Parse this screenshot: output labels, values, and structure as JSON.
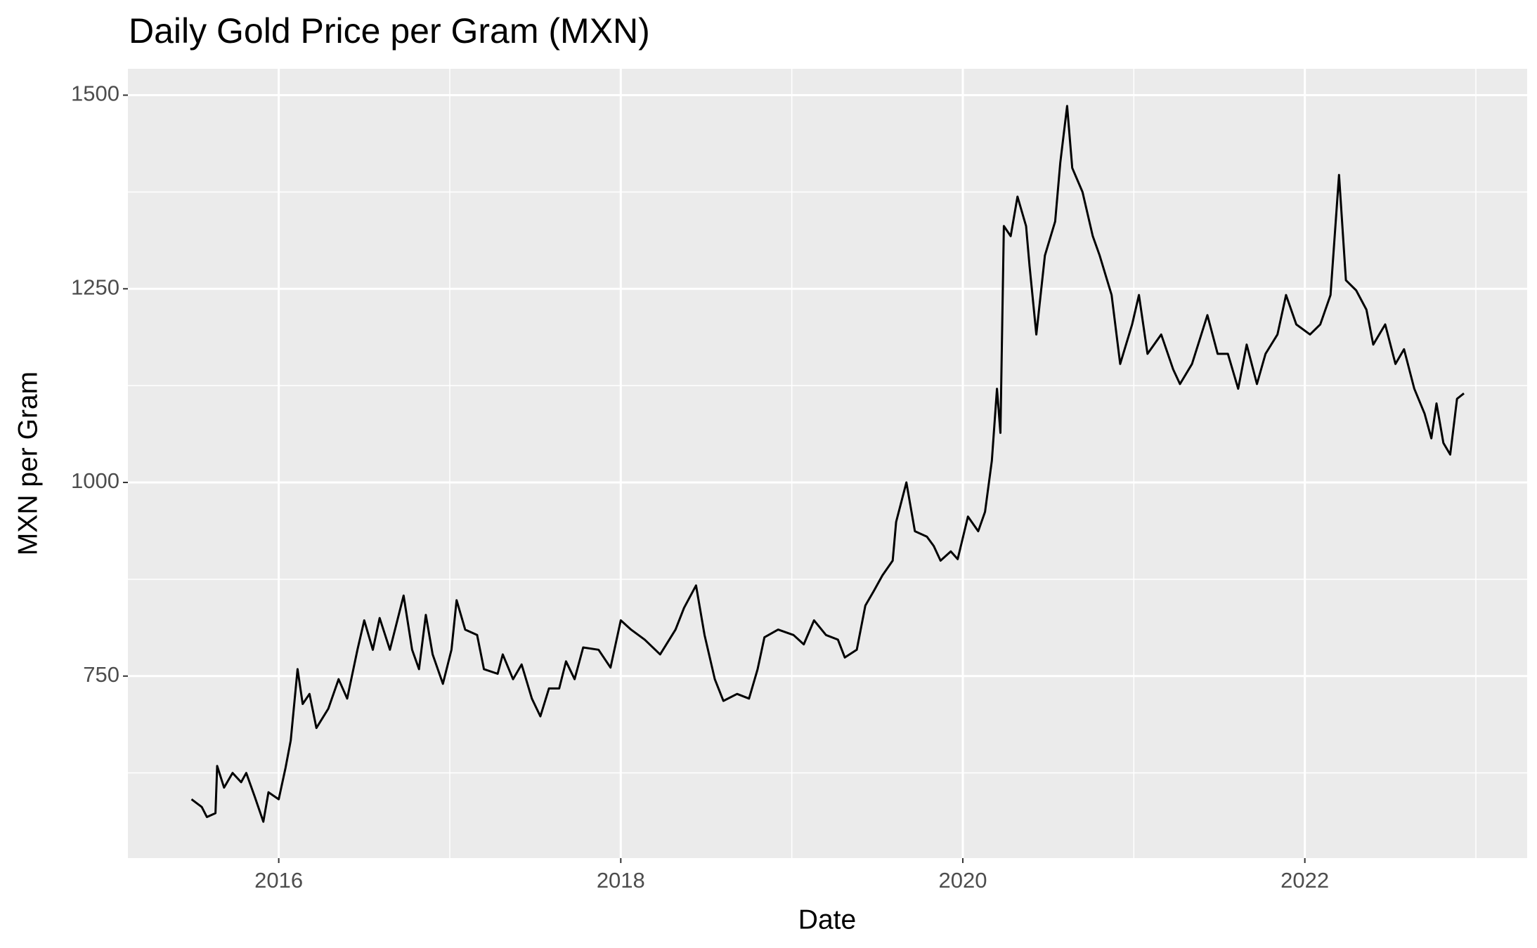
{
  "chart_data": {
    "type": "line",
    "title": "Daily Gold Price per Gram (MXN)",
    "x_label": "Date",
    "y_label": "MXN per Gram",
    "x": [
      2015.49,
      2015.55,
      2015.58,
      2015.63,
      2015.64,
      2015.68,
      2015.73,
      2015.78,
      2015.81,
      2015.86,
      2015.91,
      2015.94,
      2016.0,
      2016.04,
      2016.07,
      2016.11,
      2016.14,
      2016.18,
      2016.22,
      2016.29,
      2016.35,
      2016.4,
      2016.46,
      2016.5,
      2016.55,
      2016.59,
      2016.65,
      2016.73,
      2016.78,
      2016.82,
      2016.86,
      2016.9,
      2016.96,
      2017.01,
      2017.04,
      2017.09,
      2017.16,
      2017.2,
      2017.28,
      2017.31,
      2017.37,
      2017.42,
      2017.48,
      2017.53,
      2017.58,
      2017.64,
      2017.68,
      2017.73,
      2017.78,
      2017.87,
      2017.94,
      2018.0,
      2018.06,
      2018.14,
      2018.23,
      2018.32,
      2018.37,
      2018.44,
      2018.49,
      2018.55,
      2018.6,
      2018.68,
      2018.75,
      2018.8,
      2018.84,
      2018.92,
      2019.01,
      2019.07,
      2019.13,
      2019.2,
      2019.27,
      2019.31,
      2019.38,
      2019.43,
      2019.48,
      2019.53,
      2019.59,
      2019.61,
      2019.67,
      2019.72,
      2019.79,
      2019.83,
      2019.87,
      2019.93,
      2019.97,
      2020.03,
      2020.09,
      2020.13,
      2020.17,
      2020.2,
      2020.22,
      2020.24,
      2020.28,
      2020.32,
      2020.37,
      2020.39,
      2020.43,
      2020.48,
      2020.54,
      2020.57,
      2020.61,
      2020.64,
      2020.7,
      2020.76,
      2020.8,
      2020.87,
      2020.92,
      2020.99,
      2021.03,
      2021.08,
      2021.16,
      2021.23,
      2021.27,
      2021.34,
      2021.43,
      2021.49,
      2021.55,
      2021.61,
      2021.66,
      2021.72,
      2021.77,
      2021.84,
      2021.89,
      2021.95,
      2022.03,
      2022.09,
      2022.15,
      2022.2,
      2022.24,
      2022.3,
      2022.36,
      2022.4,
      2022.47,
      2022.53,
      2022.58,
      2022.64,
      2022.7,
      2022.74,
      2022.77,
      2022.81,
      2022.85,
      2022.89,
      2022.93
    ],
    "series": [
      {
        "color": "#000000",
        "values": [
          591,
          581,
          568,
          573,
          634,
          606,
          625,
          613,
          625,
          594,
          562,
          600,
          591,
          632,
          667,
          759,
          714,
          727,
          683,
          708,
          746,
          721,
          784,
          822,
          784,
          825,
          784,
          854,
          784,
          759,
          829,
          778,
          740,
          784,
          848,
          810,
          803,
          759,
          753,
          778,
          746,
          765,
          721,
          698,
          734,
          734,
          769,
          746,
          787,
          784,
          761,
          822,
          810,
          797,
          778,
          810,
          838,
          867,
          803,
          746,
          718,
          727,
          721,
          759,
          800,
          810,
          803,
          791,
          822,
          803,
          797,
          774,
          784,
          841,
          860,
          880,
          899,
          949,
          1000,
          937,
          930,
          918,
          899,
          911,
          901,
          956,
          937,
          962,
          1028,
          1121,
          1064,
          1331,
          1318,
          1369,
          1331,
          1280,
          1191,
          1293,
          1337,
          1413,
          1486,
          1406,
          1375,
          1318,
          1293,
          1242,
          1153,
          1204,
          1242,
          1166,
          1191,
          1146,
          1127,
          1153,
          1216,
          1166,
          1166,
          1121,
          1178,
          1127,
          1166,
          1191,
          1242,
          1204,
          1191,
          1204,
          1242,
          1397,
          1261,
          1248,
          1223,
          1178,
          1204,
          1153,
          1172,
          1121,
          1089,
          1057,
          1102,
          1051,
          1036,
          1108,
          1115
        ]
      }
    ],
    "xlim": [
      2015.118,
      2023.3
    ],
    "ylim": [
      515,
      1534
    ],
    "xticks": [
      2016,
      2018,
      2020,
      2022
    ],
    "yticks": [
      750,
      1000,
      1250,
      1500
    ],
    "minor_xticks": [
      2017,
      2019,
      2021,
      2023
    ],
    "minor_yticks": [
      625,
      875,
      1125,
      1375
    ],
    "grid": true
  }
}
